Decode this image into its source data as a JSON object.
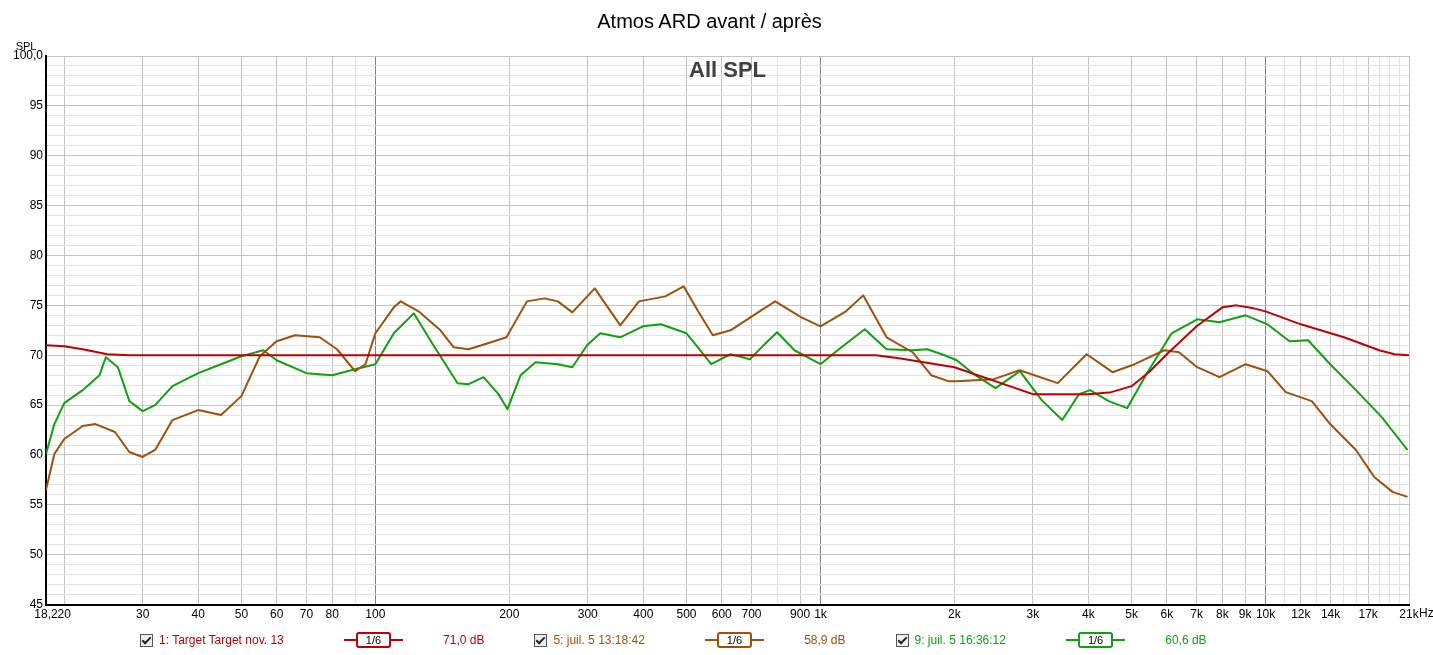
{
  "chart_data": {
    "type": "line",
    "title": "Atmos ARD avant / après",
    "subtitle": "All SPL",
    "ylabel": "SPL",
    "xlabel": "Hz",
    "xlim": [
      18.2,
      21000
    ],
    "ylim": [
      45,
      100
    ],
    "log": "x",
    "grid": true,
    "legend": "bottom",
    "xticks": [
      {
        "value": 18.2,
        "label": "18,2"
      },
      20,
      30,
      40,
      50,
      60,
      70,
      80,
      {
        "value": 90,
        "label": null
      },
      100,
      200,
      300,
      400,
      500,
      600,
      700,
      {
        "value": 800,
        "label": null
      },
      900,
      {
        "value": 1000,
        "label": "1k"
      },
      {
        "value": 2000,
        "label": "2k"
      },
      {
        "value": 3000,
        "label": "3k"
      },
      {
        "value": 4000,
        "label": "4k"
      },
      {
        "value": 5000,
        "label": "5k"
      },
      {
        "value": 6000,
        "label": "6k"
      },
      {
        "value": 7000,
        "label": "7k"
      },
      {
        "value": 8000,
        "label": "8k"
      },
      {
        "value": 9000,
        "label": "9k"
      },
      {
        "value": 10000,
        "label": "10k"
      },
      {
        "value": 11000,
        "label": null
      },
      {
        "value": 12000,
        "label": "12k"
      },
      {
        "value": 13000,
        "label": null
      },
      {
        "value": 14000,
        "label": "14k"
      },
      {
        "value": 15000,
        "label": null
      },
      {
        "value": 16000,
        "label": null
      },
      {
        "value": 17000,
        "label": "17k"
      },
      {
        "value": 18000,
        "label": null
      },
      {
        "value": 19000,
        "label": null
      },
      {
        "value": 20000,
        "label": null
      },
      {
        "value": 21000,
        "label": "21k"
      }
    ],
    "yticks": [
      45,
      {
        "value": 46,
        "label": null
      },
      {
        "value": 47,
        "label": null
      },
      {
        "value": 48,
        "label": null
      },
      {
        "value": 49,
        "label": null
      },
      50,
      {
        "value": 51,
        "label": null
      },
      {
        "value": 52,
        "label": null
      },
      {
        "value": 53,
        "label": null
      },
      {
        "value": 54,
        "label": null
      },
      55,
      {
        "value": 56,
        "label": null
      },
      {
        "value": 57,
        "label": null
      },
      {
        "value": 58,
        "label": null
      },
      {
        "value": 59,
        "label": null
      },
      60,
      {
        "value": 61,
        "label": null
      },
      {
        "value": 62,
        "label": null
      },
      {
        "value": 63,
        "label": null
      },
      {
        "value": 64,
        "label": null
      },
      65,
      {
        "value": 66,
        "label": null
      },
      {
        "value": 67,
        "label": null
      },
      {
        "value": 68,
        "label": null
      },
      {
        "value": 69,
        "label": null
      },
      70,
      {
        "value": 71,
        "label": null
      },
      {
        "value": 72,
        "label": null
      },
      {
        "value": 73,
        "label": null
      },
      {
        "value": 74,
        "label": null
      },
      75,
      {
        "value": 76,
        "label": null
      },
      {
        "value": 77,
        "label": null
      },
      {
        "value": 78,
        "label": null
      },
      {
        "value": 79,
        "label": null
      },
      80,
      {
        "value": 81,
        "label": null
      },
      {
        "value": 82,
        "label": null
      },
      {
        "value": 83,
        "label": null
      },
      {
        "value": 84,
        "label": null
      },
      85,
      {
        "value": 86,
        "label": null
      },
      {
        "value": 87,
        "label": null
      },
      {
        "value": 88,
        "label": null
      },
      {
        "value": 89,
        "label": null
      },
      90,
      {
        "value": 91,
        "label": null
      },
      {
        "value": 92,
        "label": null
      },
      {
        "value": 93,
        "label": null
      },
      {
        "value": 94,
        "label": null
      },
      95,
      {
        "value": 96,
        "label": null
      },
      {
        "value": 97,
        "label": null
      },
      {
        "value": 98,
        "label": null
      },
      {
        "value": 99,
        "label": null
      },
      {
        "value": 100,
        "label": "100,0"
      }
    ],
    "annotations": [
      "1/6",
      "71,0 dB",
      "1/6",
      "58,9 dB",
      "1/6",
      "60,6 dB"
    ],
    "series": [
      {
        "name": "1: Target Target nov. 13",
        "color": "#c00000",
        "x": [
          18.2,
          20,
          22,
          25,
          28,
          100,
          1000,
          1332,
          1500,
          2000,
          3000,
          4000,
          4500,
          5000,
          5500,
          6000,
          7000,
          8000,
          8600,
          9400,
          10000,
          12000,
          15000,
          18000,
          19500,
          21000
        ],
        "values": [
          71.0,
          70.9,
          70.6,
          70.1,
          70.0,
          70.0,
          70.0,
          70.0,
          69.7,
          68.8,
          66.1,
          66.1,
          66.3,
          66.9,
          68.4,
          70.1,
          72.9,
          74.8,
          75.0,
          74.7,
          74.4,
          73.1,
          71.8,
          70.5,
          70.1,
          70.0
        ]
      },
      {
        "name": "5: juil. 5 13:18:42",
        "color": "#a0500a",
        "x": [
          18.2,
          19,
          20,
          22,
          23.5,
          26,
          28,
          30,
          32,
          35,
          40,
          45,
          50,
          55,
          60,
          66,
          75,
          82,
          90,
          95,
          100,
          110,
          114,
          125,
          140,
          150,
          162,
          179,
          197,
          219,
          240,
          257,
          277,
          311,
          355,
          391,
          448,
          493,
          531,
          573,
          628,
          707,
          791,
          906,
          1000,
          1141,
          1248,
          1408,
          1610,
          1773,
          1937,
          2023,
          2450,
          2804,
          3411,
          3962,
          4530,
          5080,
          5920,
          6390,
          7020,
          7880,
          9020,
          10100,
          11100,
          12700,
          13970,
          15960,
          17540,
          19280,
          20840
        ],
        "values": [
          56.5,
          60.1,
          61.6,
          62.9,
          63.1,
          62.3,
          60.3,
          59.8,
          60.5,
          63.5,
          64.5,
          64.0,
          65.9,
          69.9,
          71.4,
          72.0,
          71.8,
          70.6,
          68.4,
          69.1,
          72.2,
          74.8,
          75.4,
          74.4,
          72.5,
          70.8,
          70.6,
          71.2,
          71.8,
          75.4,
          75.7,
          75.4,
          74.3,
          76.7,
          73.0,
          75.4,
          75.9,
          76.9,
          74.4,
          72.0,
          72.5,
          74.0,
          75.4,
          73.8,
          72.9,
          74.4,
          76.0,
          71.8,
          70.3,
          68.0,
          67.4,
          67.4,
          67.6,
          68.5,
          67.2,
          70.1,
          68.3,
          69.1,
          70.5,
          70.3,
          68.8,
          67.8,
          69.1,
          68.4,
          66.3,
          65.4,
          63.1,
          60.5,
          57.8,
          56.3,
          55.8
        ]
      },
      {
        "name": "9: juil. 5 16:36:12",
        "color": "#10a010",
        "x": [
          18.2,
          19,
          20,
          22,
          24,
          24.8,
          26.4,
          28,
          30,
          32,
          35,
          40,
          45,
          50,
          56,
          60,
          70,
          80,
          90,
          100,
          110,
          122,
          135,
          153,
          162,
          175,
          189,
          198,
          212,
          229,
          257,
          277,
          299,
          320,
          355,
          399,
          438,
          500,
          541,
          568,
          628,
          694,
          753,
          799,
          874,
          1000,
          1100,
          1257,
          1408,
          1610,
          1738,
          1900,
          2023,
          2227,
          2474,
          2804,
          3140,
          3492,
          3810,
          4033,
          4442,
          4890,
          5380,
          6150,
          7020,
          7880,
          9020,
          10100,
          11320,
          12460,
          13970,
          15960,
          18240,
          20840
        ],
        "values": [
          60.1,
          63.1,
          65.2,
          66.5,
          68.0,
          69.8,
          68.8,
          65.4,
          64.4,
          65.0,
          66.9,
          68.2,
          69.1,
          69.9,
          70.5,
          69.5,
          68.2,
          68.0,
          68.6,
          69.1,
          72.2,
          74.2,
          71.0,
          67.2,
          67.1,
          67.8,
          66.1,
          64.6,
          68.0,
          69.3,
          69.1,
          68.8,
          71.0,
          72.2,
          71.8,
          72.9,
          73.1,
          72.2,
          70.3,
          69.1,
          70.1,
          69.6,
          71.2,
          72.3,
          70.5,
          69.1,
          70.6,
          72.6,
          70.6,
          70.5,
          70.6,
          70.0,
          69.5,
          68.0,
          66.7,
          68.4,
          65.5,
          63.5,
          66.1,
          66.5,
          65.4,
          64.7,
          68.0,
          72.2,
          73.6,
          73.3,
          74.0,
          73.1,
          71.4,
          71.5,
          69.1,
          66.5,
          63.8,
          60.5
        ]
      }
    ]
  }
}
